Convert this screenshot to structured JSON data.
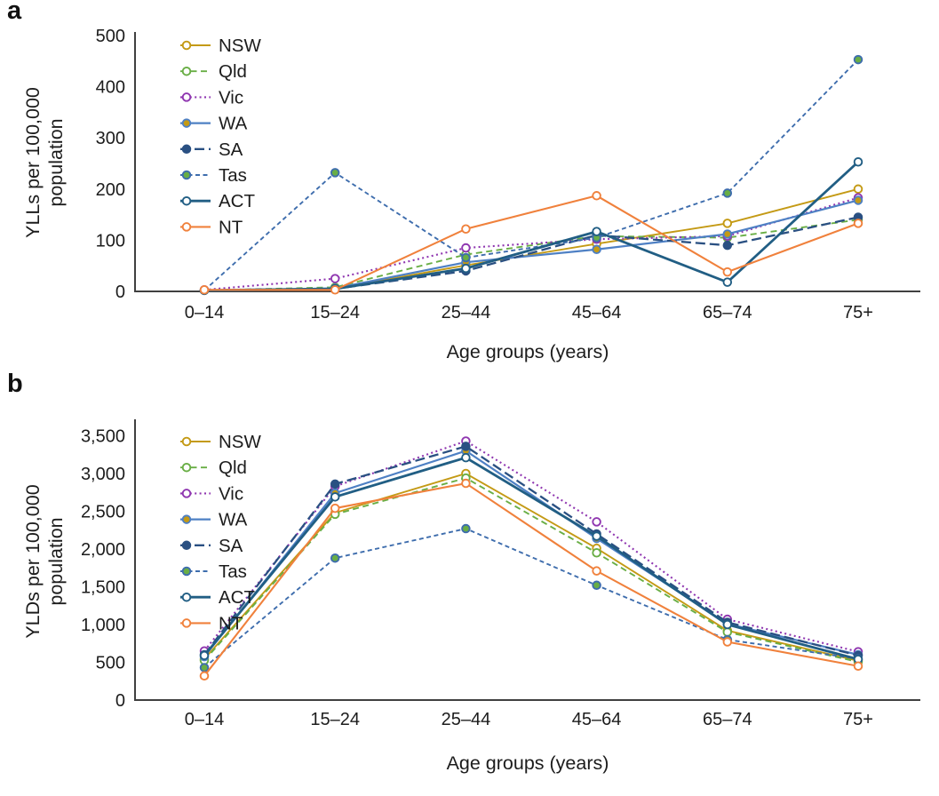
{
  "figure": {
    "panels": [
      {
        "label": "a"
      },
      {
        "label": "b"
      }
    ]
  },
  "chart_data": [
    {
      "type": "line",
      "panel": "a",
      "title": "",
      "xlabel": "Age groups (years)",
      "ylabel": "YLLs per 100,000 population",
      "ylabel_lines": [
        "YLLs per 100,000",
        "population"
      ],
      "categories": [
        "0–14",
        "15–24",
        "25–44",
        "45–64",
        "65–74",
        "75+"
      ],
      "ylim": [
        0,
        500
      ],
      "yticks": [
        0,
        100,
        200,
        300,
        400,
        500
      ],
      "ytick_labels": [
        "0",
        "100",
        "200",
        "300",
        "400",
        "500"
      ],
      "grid": false,
      "legend_position": "top-left",
      "series": [
        {
          "name": "NSW",
          "color": "#C49A15",
          "dash": "",
          "marker_fill": "#ffffff",
          "width": 1.9,
          "values": [
            2,
            5,
            51,
            93,
            133,
            200
          ]
        },
        {
          "name": "Qld",
          "color": "#69AE45",
          "dash": "7 4.5",
          "marker_fill": "#ffffff",
          "width": 1.9,
          "values": [
            2,
            8,
            72,
            108,
            105,
            140
          ]
        },
        {
          "name": "Vic",
          "color": "#8F36B0",
          "dash": "2 3.4",
          "marker_fill": "#ffffff",
          "width": 2.1,
          "values": [
            3,
            25,
            85,
            102,
            108,
            183
          ]
        },
        {
          "name": "WA",
          "color": "#4E80C4",
          "dash": "",
          "marker_fill": "#C49A15",
          "width": 2.2,
          "values": [
            2,
            6,
            57,
            82,
            112,
            178
          ]
        },
        {
          "name": "SA",
          "color": "#2A5082",
          "dash": "11 5",
          "marker_fill": "#2A5082",
          "width": 2.3,
          "values": [
            2,
            5,
            40,
            110,
            90,
            145
          ]
        },
        {
          "name": "Tas",
          "color": "#3E6DAD",
          "dash": "5 3.5",
          "marker_fill": "#69AE45",
          "width": 1.9,
          "values": [
            2,
            232,
            66,
            105,
            192,
            453
          ]
        },
        {
          "name": "ACT",
          "color": "#215E84",
          "dash": "",
          "marker_fill": "#ffffff",
          "width": 2.8,
          "values": [
            2,
            5,
            45,
            117,
            18,
            253
          ]
        },
        {
          "name": "NT",
          "color": "#F0813C",
          "dash": "",
          "marker_fill": "#ffffff",
          "width": 2.1,
          "values": [
            3,
            3,
            122,
            187,
            38,
            133
          ]
        }
      ]
    },
    {
      "type": "line",
      "panel": "b",
      "title": "",
      "xlabel": "Age groups (years)",
      "ylabel": "YLDs per 100,000 population",
      "ylabel_lines": [
        "YLDs per 100,000",
        "population"
      ],
      "categories": [
        "0–14",
        "15–24",
        "25–44",
        "45–64",
        "65–74",
        "75+"
      ],
      "ylim": [
        0,
        3500
      ],
      "yticks": [
        0,
        500,
        1000,
        1500,
        2000,
        2500,
        3000,
        3500
      ],
      "ytick_labels": [
        "0",
        "500",
        "1,000",
        "1,500",
        "2,000",
        "2,500",
        "3,000",
        "3,500"
      ],
      "grid": false,
      "legend_position": "top-left",
      "series": [
        {
          "name": "NSW",
          "color": "#C49A15",
          "dash": "",
          "marker_fill": "#ffffff",
          "width": 1.9,
          "values": [
            545,
            2480,
            3000,
            2010,
            920,
            520
          ]
        },
        {
          "name": "Qld",
          "color": "#69AE45",
          "dash": "7 4.5",
          "marker_fill": "#ffffff",
          "width": 1.9,
          "values": [
            525,
            2460,
            2940,
            1950,
            900,
            505
          ]
        },
        {
          "name": "Vic",
          "color": "#8F36B0",
          "dash": "2 3.4",
          "marker_fill": "#ffffff",
          "width": 2.1,
          "values": [
            650,
            2830,
            3430,
            2360,
            1070,
            640
          ]
        },
        {
          "name": "WA",
          "color": "#4E80C4",
          "dash": "",
          "marker_fill": "#C49A15",
          "width": 2.2,
          "values": [
            575,
            2740,
            3300,
            2140,
            1010,
            600
          ]
        },
        {
          "name": "SA",
          "color": "#2A5082",
          "dash": "11 5",
          "marker_fill": "#2A5082",
          "width": 2.3,
          "values": [
            600,
            2860,
            3360,
            2200,
            1030,
            590
          ]
        },
        {
          "name": "Tas",
          "color": "#3E6DAD",
          "dash": "5 3.5",
          "marker_fill": "#69AE45",
          "width": 1.9,
          "values": [
            430,
            1880,
            2270,
            1520,
            800,
            545
          ]
        },
        {
          "name": "ACT",
          "color": "#215E84",
          "dash": "",
          "marker_fill": "#ffffff",
          "width": 2.8,
          "values": [
            590,
            2690,
            3210,
            2170,
            1000,
            540
          ]
        },
        {
          "name": "NT",
          "color": "#F0813C",
          "dash": "",
          "marker_fill": "#ffffff",
          "width": 2.1,
          "values": [
            320,
            2540,
            2870,
            1710,
            770,
            450
          ]
        }
      ]
    }
  ]
}
